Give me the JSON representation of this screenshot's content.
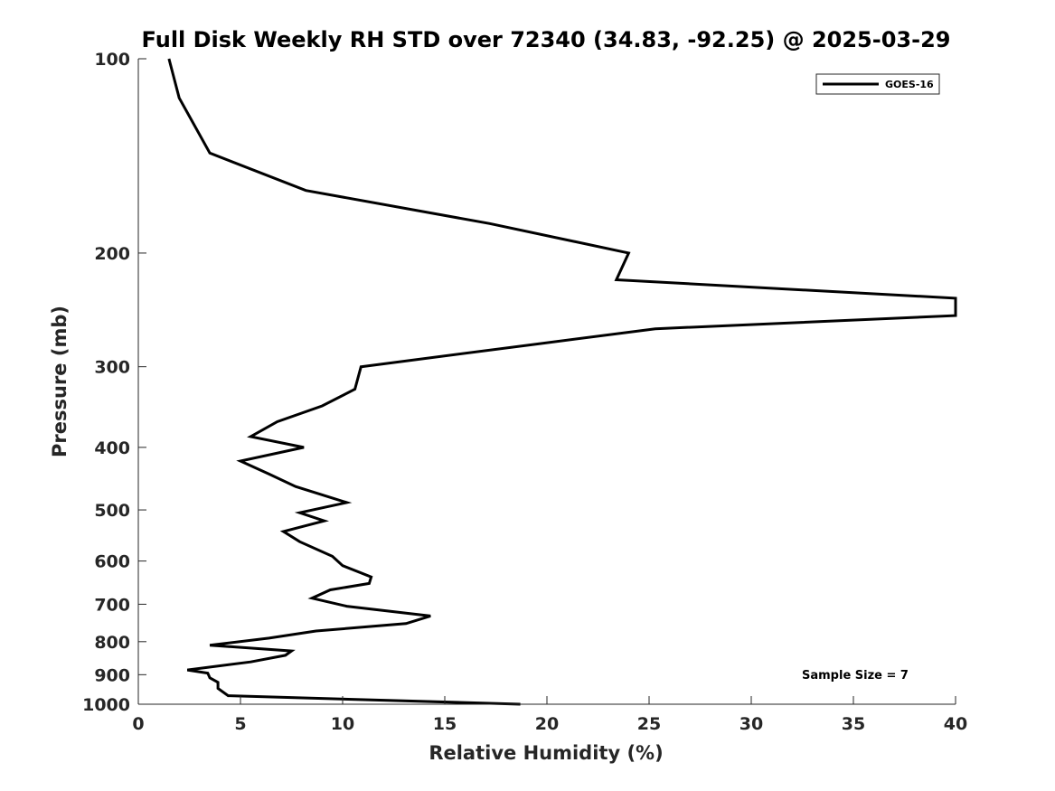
{
  "chart_data": {
    "type": "line",
    "title": "Full Disk Weekly RH STD over 72340 (34.83, -92.25) @ 2025-03-29",
    "xlabel": "Relative Humidity (%)",
    "ylabel": "Pressure (mb)",
    "xlim": [
      0,
      40
    ],
    "ylim": [
      1000,
      100
    ],
    "yscale": "log",
    "y_reversed": true,
    "xticks": [
      "0",
      "5",
      "10",
      "15",
      "20",
      "25",
      "30",
      "35",
      "40"
    ],
    "yticks": [
      "100",
      "200",
      "300",
      "400",
      "500",
      "600",
      "700",
      "800",
      "900",
      "1000"
    ],
    "grid": false,
    "legend_position": "top-right",
    "annotation": "Sample Size = 7",
    "series": [
      {
        "name": "GOES-16",
        "color": "#000000",
        "x": [
          1.5,
          2.0,
          3.5,
          8.2,
          17.2,
          24.0,
          23.4,
          40.0,
          40.0,
          25.3,
          10.9,
          10.6,
          9.0,
          6.8,
          5.5,
          8.1,
          5.0,
          6.4,
          7.7,
          10.2,
          7.9,
          9.1,
          7.1,
          7.9,
          9.5,
          10.0,
          11.4,
          11.3,
          9.4,
          8.5,
          10.2,
          14.3,
          13.1,
          8.7,
          6.4,
          3.5,
          7.5,
          7.2,
          5.5,
          2.4,
          3.4,
          3.5,
          3.9,
          3.9,
          4.4,
          18.7
        ],
        "y": [
          100,
          115,
          140,
          160,
          180,
          200,
          220,
          235,
          250,
          262,
          300,
          325,
          345,
          365,
          385,
          400,
          420,
          440,
          460,
          487,
          505,
          520,
          540,
          560,
          590,
          610,
          635,
          650,
          665,
          685,
          705,
          730,
          750,
          770,
          790,
          810,
          827,
          840,
          860,
          885,
          895,
          910,
          925,
          945,
          970,
          1000
        ]
      }
    ]
  }
}
